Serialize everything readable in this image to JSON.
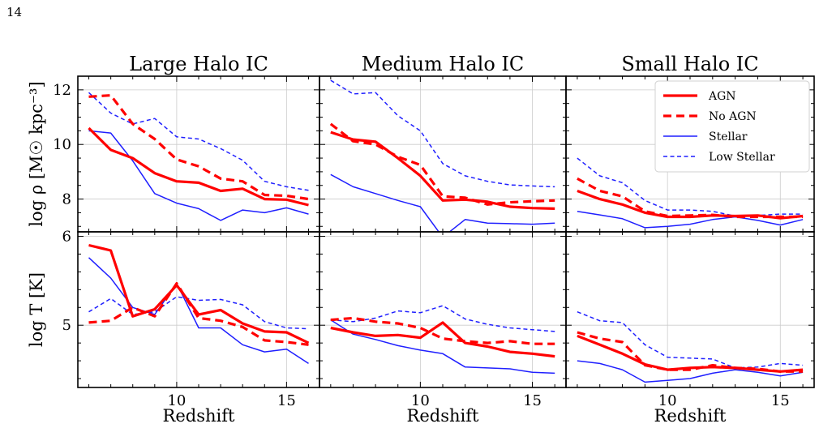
{
  "page_number": "14",
  "colors": {
    "agn": "#ff0000",
    "no_agn": "#ff0000",
    "stellar": "#1f1fff",
    "low_stellar": "#1f1fff",
    "grid": "#cccccc",
    "frame": "#000000"
  },
  "x_label": "Redshift",
  "y_labels": {
    "density": "log ρ [M☉ kpc⁻³]",
    "temperature": "log T [K]"
  },
  "legend": {
    "placement": "top-right (Small Halo IC density panel)",
    "entries": [
      "AGN",
      "No AGN",
      "Stellar",
      "Low Stellar"
    ]
  },
  "chart_data": {
    "type": "line",
    "x_axis": {
      "range": [
        5.5,
        16.5
      ],
      "ticks": [
        10,
        15
      ],
      "tick_labels": [
        "10",
        "15"
      ]
    },
    "y_axes": {
      "density": {
        "range": [
          6.8,
          12.5
        ],
        "ticks": [
          8,
          10,
          12
        ],
        "tick_labels": [
          "8",
          "10",
          "12"
        ]
      },
      "temperature": {
        "range": [
          4.3,
          6.05
        ],
        "ticks": [
          5,
          6
        ],
        "tick_labels": [
          "5",
          "6"
        ]
      }
    },
    "grid": true,
    "x": [
      6,
      7,
      8,
      9,
      10,
      11,
      12,
      13,
      14,
      15,
      16
    ],
    "panels": [
      {
        "column": "Large Halo IC",
        "density": {
          "AGN": [
            10.6,
            9.8,
            9.5,
            8.95,
            8.65,
            8.6,
            8.3,
            8.38,
            8.0,
            7.98,
            7.78
          ],
          "No AGN": [
            11.75,
            11.8,
            10.75,
            10.2,
            9.45,
            9.2,
            8.75,
            8.65,
            8.15,
            8.12,
            8.0
          ],
          "Stellar": [
            10.5,
            10.42,
            9.4,
            8.2,
            7.85,
            7.65,
            7.22,
            7.6,
            7.5,
            7.68,
            7.45
          ],
          "Low Stellar": [
            11.9,
            11.15,
            10.75,
            10.95,
            10.28,
            10.2,
            9.85,
            9.42,
            8.65,
            8.45,
            8.32
          ]
        },
        "temperature": {
          "AGN": [
            5.9,
            5.84,
            5.1,
            5.18,
            5.45,
            5.12,
            5.17,
            5.02,
            4.93,
            4.92,
            4.8
          ],
          "No AGN": [
            5.03,
            5.05,
            5.2,
            5.1,
            5.47,
            5.08,
            5.05,
            4.98,
            4.83,
            4.81,
            4.78
          ],
          "Stellar": [
            5.76,
            5.53,
            5.2,
            5.12,
            5.47,
            4.97,
            4.97,
            4.78,
            4.7,
            4.73,
            4.57
          ],
          "Low Stellar": [
            5.15,
            5.3,
            5.12,
            5.15,
            5.32,
            5.28,
            5.29,
            5.23,
            5.04,
            4.97,
            4.96
          ]
        }
      },
      {
        "column": "Medium Halo IC",
        "density": {
          "AGN": [
            10.45,
            10.18,
            10.1,
            9.5,
            8.85,
            7.95,
            7.98,
            7.9,
            7.72,
            7.67,
            7.65
          ],
          "No AGN": [
            10.75,
            10.12,
            10.0,
            9.55,
            9.25,
            8.1,
            8.05,
            7.8,
            7.88,
            7.92,
            7.95
          ],
          "Stellar": [
            8.9,
            8.45,
            8.2,
            7.95,
            7.72,
            6.6,
            7.25,
            7.12,
            7.1,
            7.08,
            7.12
          ],
          "Low Stellar": [
            12.35,
            11.85,
            11.9,
            11.05,
            10.5,
            9.3,
            8.85,
            8.65,
            8.52,
            8.48,
            8.45
          ]
        },
        "temperature": {
          "AGN": [
            4.97,
            4.92,
            4.88,
            4.89,
            4.86,
            5.03,
            4.8,
            4.76,
            4.7,
            4.68,
            4.65
          ],
          "No AGN": [
            5.06,
            5.08,
            5.04,
            5.02,
            4.97,
            4.85,
            4.82,
            4.8,
            4.82,
            4.79,
            4.79
          ],
          "Stellar": [
            5.06,
            4.9,
            4.84,
            4.77,
            4.72,
            4.68,
            4.53,
            4.52,
            4.51,
            4.47,
            4.46
          ],
          "Low Stellar": [
            5.06,
            5.04,
            5.08,
            5.16,
            5.14,
            5.22,
            5.07,
            5.01,
            4.97,
            4.95,
            4.93
          ]
        }
      },
      {
        "column": "Small Halo IC",
        "density": {
          "AGN": [
            8.3,
            8.0,
            7.8,
            7.5,
            7.35,
            7.35,
            7.4,
            7.38,
            7.4,
            7.3,
            7.38
          ],
          "No AGN": [
            8.75,
            8.3,
            8.1,
            7.55,
            7.38,
            7.4,
            7.42,
            7.35,
            7.35,
            7.35,
            7.35
          ],
          "Stellar": [
            7.55,
            7.42,
            7.28,
            6.95,
            7.0,
            7.08,
            7.25,
            7.35,
            7.22,
            7.05,
            7.25
          ],
          "Low Stellar": [
            9.5,
            8.85,
            8.6,
            7.95,
            7.6,
            7.6,
            7.55,
            7.38,
            7.4,
            7.45,
            7.45
          ]
        },
        "temperature": {
          "AGN": [
            4.88,
            4.78,
            4.68,
            4.56,
            4.5,
            4.52,
            4.53,
            4.52,
            4.5,
            4.48,
            4.5
          ],
          "No AGN": [
            4.92,
            4.85,
            4.81,
            4.55,
            4.5,
            4.5,
            4.55,
            4.52,
            4.51,
            4.48,
            4.48
          ],
          "Stellar": [
            4.6,
            4.57,
            4.5,
            4.36,
            4.38,
            4.4,
            4.46,
            4.5,
            4.47,
            4.43,
            4.47
          ],
          "Low Stellar": [
            5.15,
            5.05,
            5.03,
            4.78,
            4.64,
            4.63,
            4.62,
            4.52,
            4.53,
            4.57,
            4.55
          ]
        }
      }
    ]
  }
}
